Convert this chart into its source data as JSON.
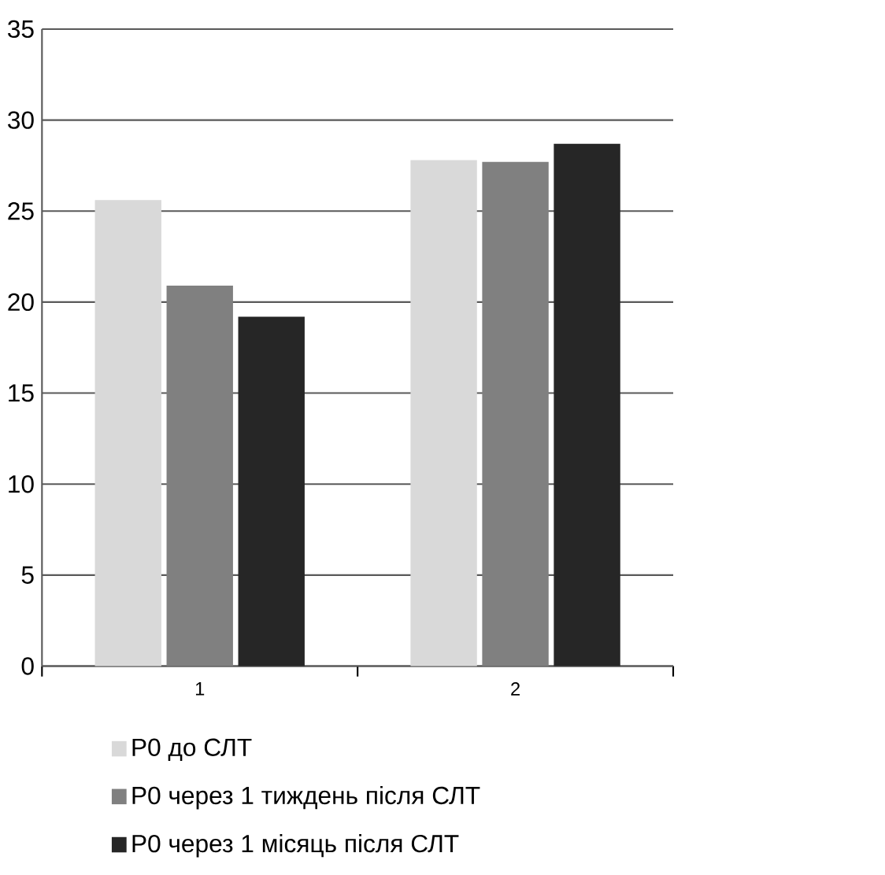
{
  "chart_data": {
    "type": "bar",
    "categories": [
      "1",
      "2"
    ],
    "series": [
      {
        "name": "Р0 до СЛТ",
        "color": "#d9d9d9",
        "values": [
          25.6,
          27.8
        ]
      },
      {
        "name": "Р0 через 1 тиждень після СЛТ",
        "color": "#808080",
        "values": [
          20.9,
          27.7
        ]
      },
      {
        "name": "Р0 через 1 місяць після СЛТ",
        "color": "#262626",
        "values": [
          19.2,
          28.7
        ]
      }
    ],
    "ylim": [
      0,
      35
    ],
    "yticks": [
      0,
      5,
      10,
      15,
      20,
      25,
      30,
      35
    ],
    "grid": "y",
    "legend": "bottom"
  }
}
